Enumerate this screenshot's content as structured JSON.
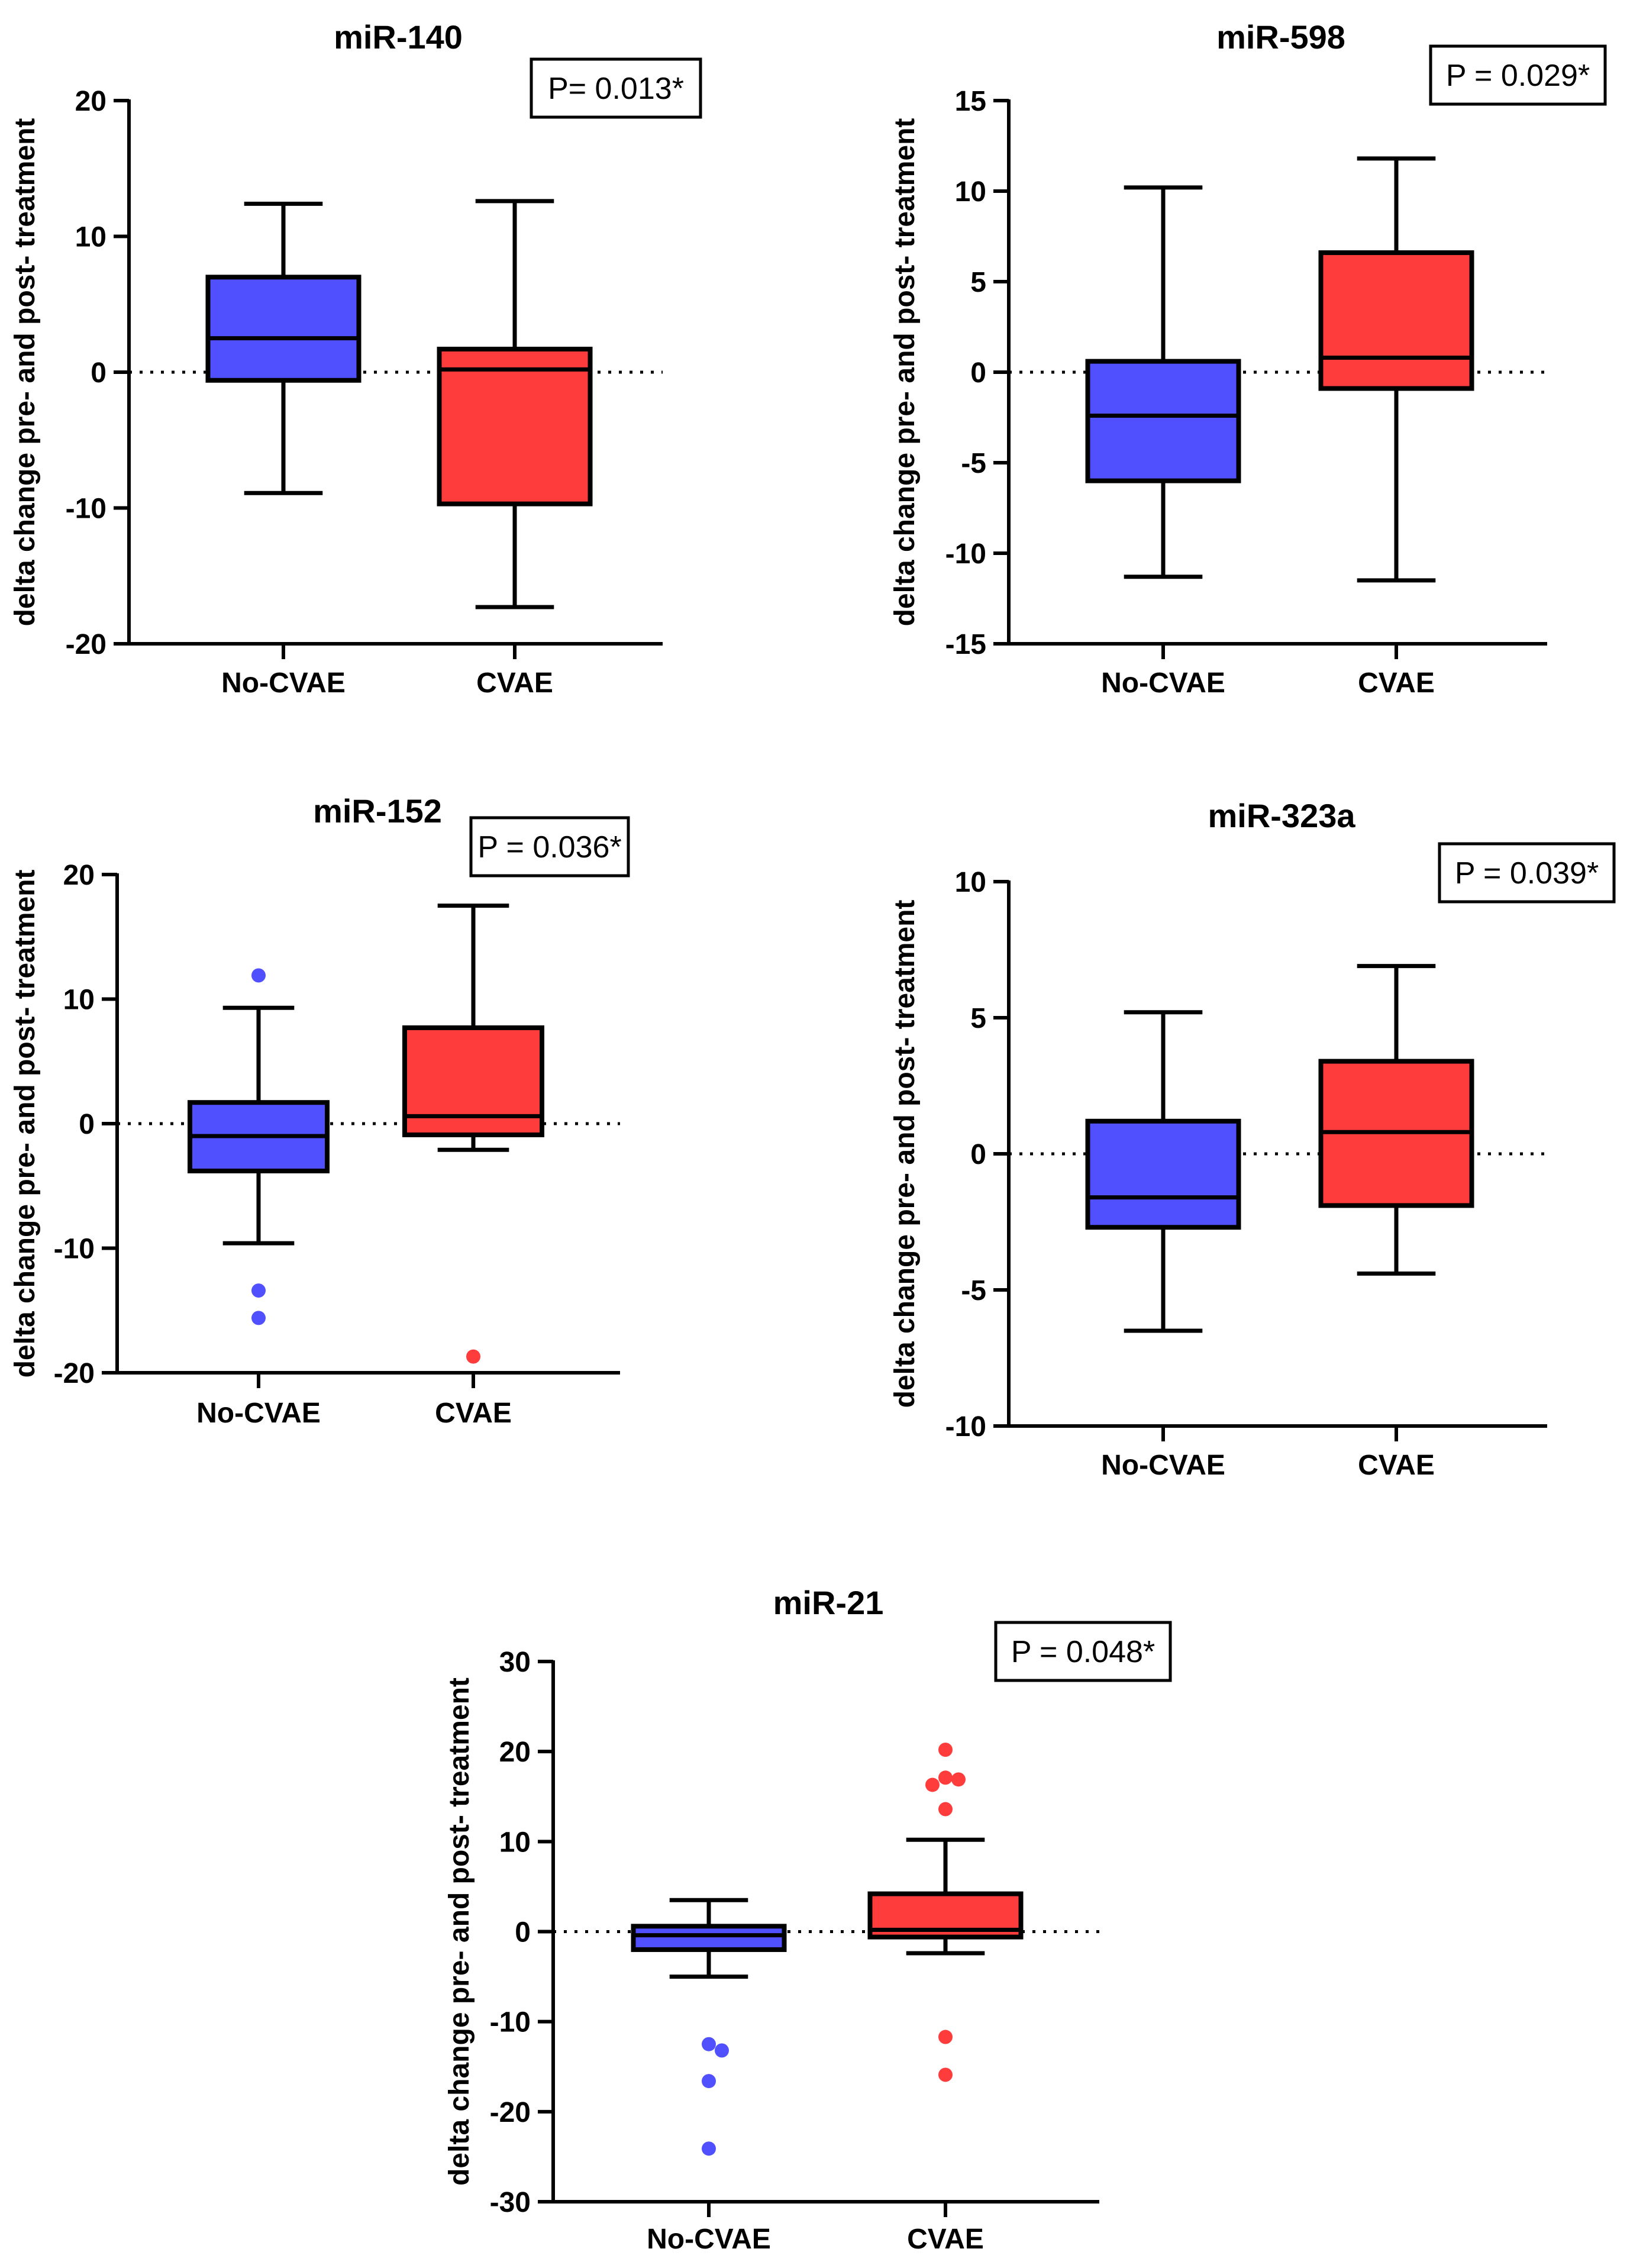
{
  "colors": {
    "no_cvae": "#5050ff",
    "cvae": "#ff3c3c",
    "outline": "#000000",
    "background": "#ffffff"
  },
  "chart_data": [
    {
      "type": "box",
      "title": "miR-140",
      "p_value": "P= 0.013*",
      "ylabel": "delta change pre- and post- treatment",
      "xlabel": "",
      "ylim": [
        -20,
        20
      ],
      "yticks": [
        -20,
        -10,
        0,
        10,
        20
      ],
      "ytick_labels": [
        "-20",
        "-10",
        "0",
        "10",
        "20"
      ],
      "reference_line": 0,
      "categories": [
        "No-CVAE",
        "CVAE"
      ],
      "series": [
        {
          "group": "No-CVAE",
          "color_key": "no_cvae",
          "whisker_low": -8.9,
          "q1": -0.6,
          "median": 2.5,
          "q3": 7.0,
          "whisker_high": 12.4,
          "outliers": []
        },
        {
          "group": "CVAE",
          "color_key": "cvae",
          "whisker_low": -17.3,
          "q1": -9.7,
          "median": 0.2,
          "q3": 1.7,
          "whisker_high": 12.6,
          "outliers": []
        }
      ]
    },
    {
      "type": "box",
      "title": "miR-598",
      "p_value": "P = 0.029*",
      "ylabel": "delta change pre- and post- treatment",
      "xlabel": "",
      "ylim": [
        -15,
        15
      ],
      "yticks": [
        -15,
        -10,
        -5,
        0,
        5,
        10,
        15
      ],
      "ytick_labels": [
        "-15",
        "-10",
        "-5",
        "0",
        "5",
        "10",
        "15"
      ],
      "reference_line": 0,
      "categories": [
        "No-CVAE",
        "CVAE"
      ],
      "series": [
        {
          "group": "No-CVAE",
          "color_key": "no_cvae",
          "whisker_low": -11.3,
          "q1": -6.0,
          "median": -2.4,
          "q3": 0.6,
          "whisker_high": 10.2,
          "outliers": []
        },
        {
          "group": "CVAE",
          "color_key": "cvae",
          "whisker_low": -11.5,
          "q1": -0.9,
          "median": 0.8,
          "q3": 6.6,
          "whisker_high": 11.8,
          "outliers": []
        }
      ]
    },
    {
      "type": "box",
      "title": "miR-152",
      "p_value": "P = 0.036*",
      "ylabel": "delta change pre- and post- treatment",
      "xlabel": "",
      "ylim": [
        -20,
        20
      ],
      "yticks": [
        -20,
        -10,
        0,
        10,
        20
      ],
      "ytick_labels": [
        "-20",
        "-10",
        "0",
        "10",
        "20"
      ],
      "reference_line": 0,
      "categories": [
        "No-CVAE",
        "CVAE"
      ],
      "series": [
        {
          "group": "No-CVAE",
          "color_key": "no_cvae",
          "whisker_low": -9.6,
          "q1": -3.8,
          "median": -1.0,
          "q3": 1.7,
          "whisker_high": 9.3,
          "outliers": [
            11.9,
            -13.4,
            -15.6
          ]
        },
        {
          "group": "CVAE",
          "color_key": "cvae",
          "whisker_low": -2.1,
          "q1": -0.9,
          "median": 0.6,
          "q3": 7.7,
          "whisker_high": 17.5,
          "outliers": [
            -18.7
          ]
        }
      ]
    },
    {
      "type": "box",
      "title": "miR-323a",
      "p_value": "P = 0.039*",
      "ylabel": "delta change pre- and post- treatment",
      "xlabel": "",
      "ylim": [
        -10,
        10
      ],
      "yticks": [
        -10,
        -5,
        0,
        5,
        10
      ],
      "ytick_labels": [
        "-10",
        "-5",
        "0",
        "5",
        "10"
      ],
      "reference_line": 0,
      "categories": [
        "No-CVAE",
        "CVAE"
      ],
      "series": [
        {
          "group": "No-CVAE",
          "color_key": "no_cvae",
          "whisker_low": -6.5,
          "q1": -2.7,
          "median": -1.6,
          "q3": 1.2,
          "whisker_high": 5.2,
          "outliers": []
        },
        {
          "group": "CVAE",
          "color_key": "cvae",
          "whisker_low": -4.4,
          "q1": -1.9,
          "median": 0.8,
          "q3": 3.4,
          "whisker_high": 6.9,
          "outliers": []
        }
      ]
    },
    {
      "type": "box",
      "title": "miR-21",
      "p_value": "P = 0.048*",
      "ylabel": "delta change pre- and post- treatment",
      "xlabel": "",
      "ylim": [
        -30,
        30
      ],
      "yticks": [
        -30,
        -20,
        -10,
        0,
        10,
        20,
        30
      ],
      "ytick_labels": [
        "-30",
        "-20",
        "-10",
        "0",
        "10",
        "20",
        "30"
      ],
      "reference_line": 0,
      "categories": [
        "No-CVAE",
        "CVAE"
      ],
      "series": [
        {
          "group": "No-CVAE",
          "color_key": "no_cvae",
          "whisker_low": -5.0,
          "q1": -2.0,
          "median": -0.4,
          "q3": 0.6,
          "whisker_high": 3.5,
          "outliers": [
            -12.5,
            -13.2,
            -16.6,
            -24.1
          ]
        },
        {
          "group": "CVAE",
          "color_key": "cvae",
          "whisker_low": -2.4,
          "q1": -0.6,
          "median": 0.2,
          "q3": 4.2,
          "whisker_high": 10.2,
          "outliers": [
            20.2,
            17.1,
            16.9,
            16.3,
            13.6,
            -11.7,
            -15.9
          ]
        }
      ]
    }
  ]
}
